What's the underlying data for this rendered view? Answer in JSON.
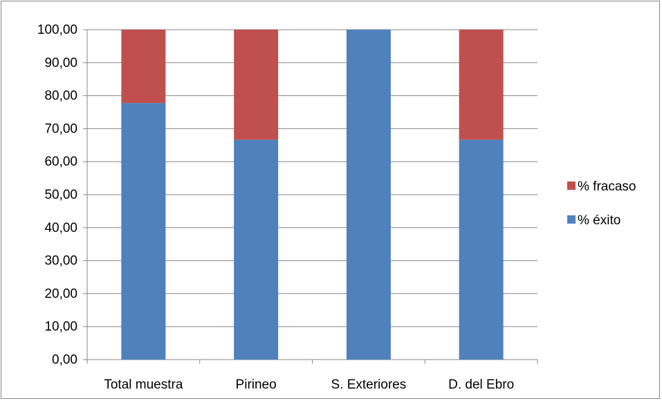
{
  "chart_data": {
    "type": "bar",
    "stacked": true,
    "categories": [
      "Total muestra",
      "Pirineo",
      "S. Exteriores",
      "D. del Ebro"
    ],
    "series": [
      {
        "name": "% éxito",
        "values": [
          77.78,
          66.67,
          100.0,
          66.67
        ],
        "color": "#4F81BD"
      },
      {
        "name": "% fracaso",
        "values": [
          22.22,
          33.33,
          0.0,
          33.33
        ],
        "color": "#C0504D"
      }
    ],
    "ylim": [
      0,
      100
    ],
    "yticks": [
      "0,00",
      "10,00",
      "20,00",
      "30,00",
      "40,00",
      "50,00",
      "60,00",
      "70,00",
      "80,00",
      "90,00",
      "100,00"
    ],
    "grid": true,
    "legend_position": "right",
    "legend_order": [
      "% fracaso",
      "% éxito"
    ]
  }
}
